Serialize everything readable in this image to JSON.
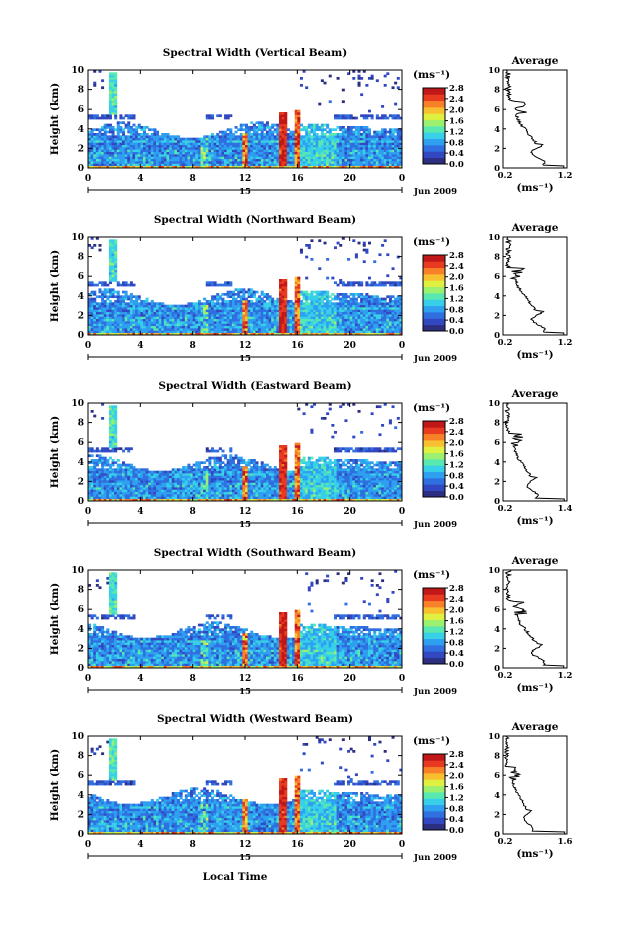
{
  "x_label": "Local Time",
  "panels": [
    {
      "title": "Spectral Width (Vertical Beam)",
      "avg_ticks": [
        "0.2",
        "1.2"
      ],
      "avg_max": 1.2
    },
    {
      "title": "Spectral Width (Northward Beam)",
      "avg_ticks": [
        "0.2",
        "1.2"
      ],
      "avg_max": 1.2
    },
    {
      "title": "Spectral Width (Eastward Beam)",
      "avg_ticks": [
        "0.2",
        "1.4"
      ],
      "avg_max": 1.4
    },
    {
      "title": "Spectral Width (Southward Beam)",
      "avg_ticks": [
        "0.2",
        "1.2"
      ],
      "avg_max": 1.2
    },
    {
      "title": "Spectral Width (Westward Beam)",
      "avg_ticks": [
        "0.2",
        "1.6"
      ],
      "avg_max": 1.6
    }
  ],
  "chart_data": {
    "type": "heatmap",
    "ylabel": "Height (km)",
    "ylim": [
      0,
      10
    ],
    "y_ticks": [
      "0",
      "2",
      "4",
      "6",
      "8",
      "10"
    ],
    "xlim": [
      0,
      24
    ],
    "x_ticks": [
      "0",
      "4",
      "8",
      "12",
      "16",
      "20",
      "0"
    ],
    "date_marker_label": "15",
    "date_label": "Jun 2009",
    "colorbar_unit": "(ms⁻¹)",
    "colorbar_ticks": [
      "0.0",
      "0.4",
      "0.8",
      "1.2",
      "1.6",
      "2.0",
      "2.4",
      "2.8"
    ],
    "colorbar_range": [
      0,
      2.8
    ],
    "colors": [
      "#2c2f80",
      "#3148c0",
      "#2f6fe0",
      "#2fa0f0",
      "#37d0e8",
      "#58e8b0",
      "#9cf070",
      "#e0f040",
      "#f8c030",
      "#f88028",
      "#e83a20",
      "#c01818"
    ],
    "average_title": "Average",
    "average_xlabel": "(ms⁻¹)"
  }
}
